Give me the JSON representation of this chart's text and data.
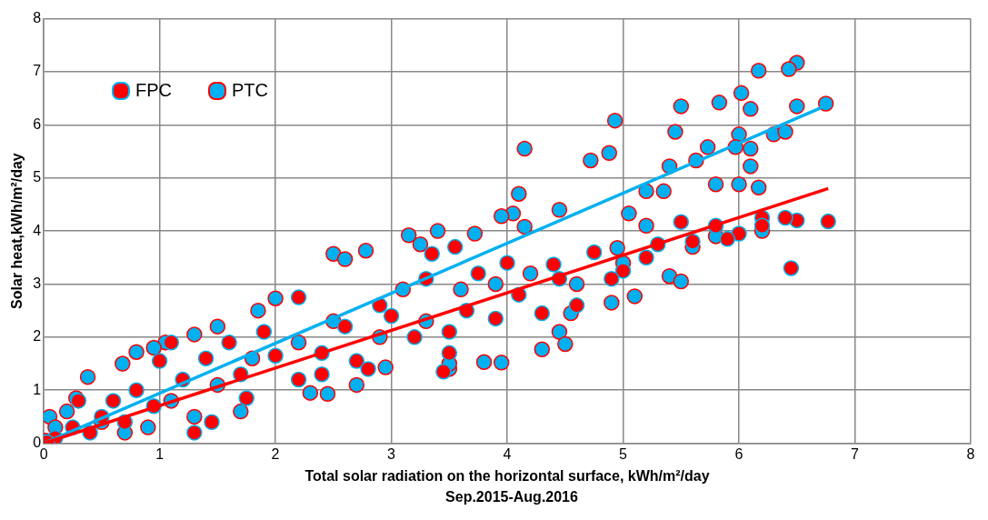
{
  "chart_data": {
    "type": "scatter",
    "xlabel": "Total solar radiation on the horizontal surface, kWh/m²/day",
    "ylabel": "Solar heat,kWh/m²/day",
    "annotations": [
      "Sep.2015-Aug.2016"
    ],
    "xlim": [
      0,
      8
    ],
    "xticks": [
      0,
      1,
      2,
      3,
      4,
      5,
      6,
      7,
      8
    ],
    "ylim": [
      0,
      8
    ],
    "yticks": [
      0,
      1,
      2,
      3,
      4,
      5,
      6,
      7,
      8
    ],
    "grid": true,
    "legend": "top left",
    "series": [
      {
        "name": "FPC",
        "marker": "circle",
        "color": "#ff0000",
        "x": [
          6.45,
          6.77,
          6.5,
          6.4,
          6.2,
          6.0,
          5.8,
          5.5,
          5.3,
          5.0,
          4.75,
          4.4,
          4.9,
          3.75,
          3.55,
          3.35,
          3.5,
          3.5,
          3.45,
          3.9,
          4.3,
          2.9,
          2.6,
          2.7,
          2.8,
          2.4,
          2.2,
          2.0,
          1.9,
          1.6,
          1.4,
          1.2,
          1.0,
          0.95,
          0.8,
          0.6,
          0.5,
          0.3,
          0.25,
          0.1,
          0.03,
          1.3,
          1.45,
          1.1,
          1.75,
          2.2,
          3.0,
          3.2,
          4.1,
          4.6,
          5.2,
          5.6,
          5.9,
          6.2,
          0.4,
          0.7,
          1.7,
          2.4,
          3.3,
          3.65,
          4.0,
          4.45
        ],
        "values": [
          3.3,
          4.18,
          4.2,
          4.25,
          4.25,
          3.95,
          4.1,
          4.17,
          3.75,
          3.25,
          3.6,
          3.37,
          3.1,
          3.2,
          3.7,
          3.57,
          2.1,
          1.7,
          1.35,
          2.35,
          2.45,
          2.6,
          2.2,
          1.55,
          1.4,
          1.3,
          2.75,
          1.65,
          2.1,
          1.9,
          1.6,
          1.2,
          1.55,
          0.7,
          1.0,
          0.8,
          0.5,
          0.8,
          0.3,
          0.1,
          0.02,
          0.2,
          0.4,
          1.9,
          0.85,
          1.2,
          2.4,
          2.0,
          2.8,
          2.6,
          3.5,
          3.8,
          3.85,
          4.1,
          0.2,
          0.4,
          1.3,
          1.7,
          3.1,
          2.5,
          3.4,
          3.1
        ]
      },
      {
        "name": "PTC",
        "marker": "circle",
        "color": "#00b0f0",
        "x": [
          6.5,
          6.43,
          6.17,
          6.02,
          5.83,
          6.75,
          6.5,
          5.5,
          6.1,
          4.93,
          5.45,
          6.0,
          6.3,
          6.1,
          4.15,
          5.73,
          5.97,
          4.88,
          4.72,
          5.63,
          5.4,
          6.1,
          5.8,
          6.0,
          6.4,
          6.17,
          5.35,
          5.2,
          5.05,
          4.1,
          4.05,
          3.95,
          3.4,
          3.15,
          3.72,
          3.25,
          4.45,
          4.15,
          2.78,
          2.5,
          2.6,
          5.2,
          4.95,
          5.0,
          5.4,
          5.5,
          5.1,
          4.9,
          4.55,
          4.45,
          4.5,
          4.3,
          3.95,
          3.8,
          3.5,
          3.5,
          2.95,
          2.7,
          2.45,
          2.3,
          2.0,
          1.5,
          1.3,
          1.85,
          1.05,
          0.95,
          0.8,
          0.68,
          0.38,
          0.28,
          0.05,
          0.1,
          0.2,
          0.5,
          0.7,
          0.9,
          1.1,
          1.3,
          1.5,
          1.7,
          1.8,
          2.2,
          2.5,
          2.9,
          3.1,
          3.3,
          3.6,
          3.9,
          4.2,
          4.6,
          5.6,
          5.8,
          6.2,
          0.02
        ],
        "values": [
          7.17,
          7.05,
          7.02,
          6.6,
          6.42,
          6.4,
          6.35,
          6.35,
          6.3,
          6.08,
          5.87,
          5.82,
          5.82,
          5.55,
          5.55,
          5.58,
          5.58,
          5.47,
          5.33,
          5.33,
          5.22,
          5.22,
          4.88,
          4.88,
          5.87,
          4.82,
          4.75,
          4.75,
          4.33,
          4.7,
          4.33,
          4.28,
          4.0,
          3.92,
          3.95,
          3.75,
          4.4,
          4.08,
          3.63,
          3.57,
          3.47,
          4.1,
          3.68,
          3.4,
          3.15,
          3.05,
          2.77,
          2.65,
          2.45,
          2.1,
          1.87,
          1.77,
          1.52,
          1.53,
          1.4,
          1.5,
          1.43,
          1.1,
          0.93,
          0.95,
          2.73,
          2.2,
          2.05,
          2.5,
          1.9,
          1.8,
          1.72,
          1.5,
          1.25,
          0.85,
          0.5,
          0.3,
          0.6,
          0.4,
          0.2,
          0.3,
          0.8,
          0.5,
          1.1,
          0.6,
          1.6,
          1.9,
          2.3,
          2.0,
          2.9,
          2.3,
          2.9,
          3.0,
          3.2,
          3.0,
          3.7,
          3.9,
          4.0,
          0.05
        ]
      },
      {
        "type": "line",
        "color": "#ff0000",
        "x": [
          0,
          6.77
        ],
        "values": [
          0,
          4.8
        ]
      },
      {
        "type": "line",
        "color": "#00b0f0",
        "x": [
          0,
          6.77
        ],
        "values": [
          0,
          6.38
        ]
      }
    ]
  }
}
